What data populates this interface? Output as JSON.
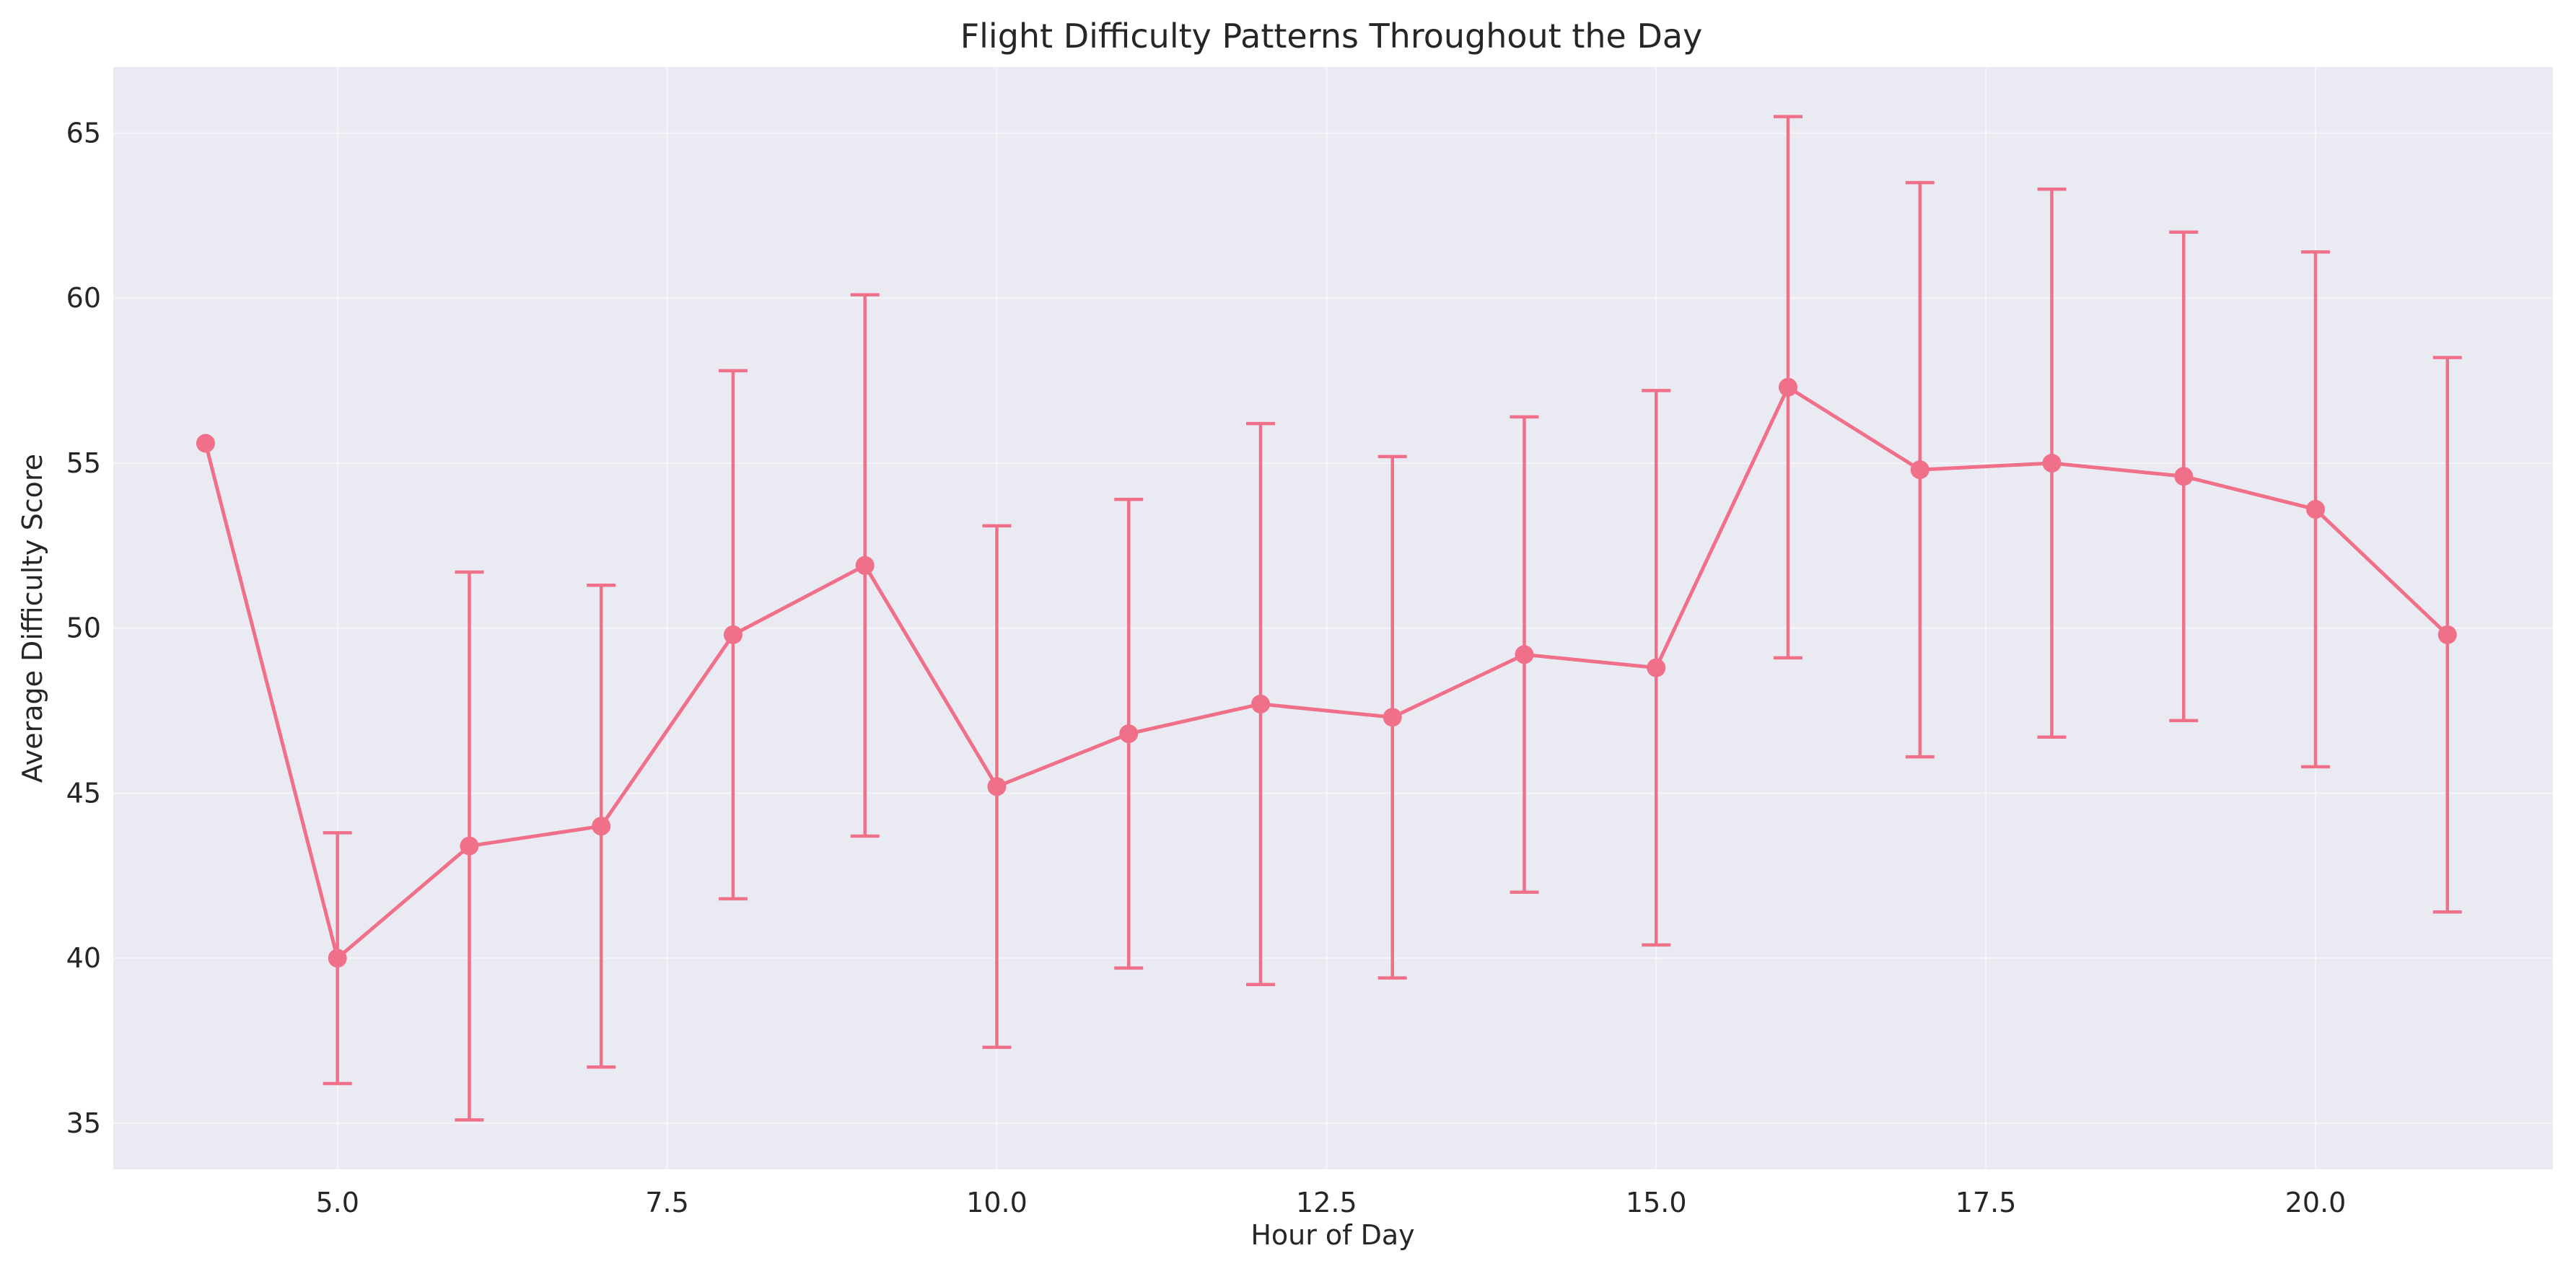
{
  "chart_data": {
    "type": "line",
    "title": "Flight Difficulty Patterns Throughout the Day",
    "xlabel": "Hour of Day",
    "ylabel": "Average Difficulty Score",
    "xlim": [
      3.3,
      21.8
    ],
    "ylim": [
      33.6,
      67.0
    ],
    "xticks": [
      5.0,
      7.5,
      10.0,
      12.5,
      15.0,
      17.5,
      20.0
    ],
    "xtick_labels": [
      "5.0",
      "7.5",
      "10.0",
      "12.5",
      "15.0",
      "17.5",
      "20.0"
    ],
    "yticks": [
      35,
      40,
      45,
      50,
      55,
      60,
      65
    ],
    "ytick_labels": [
      "35",
      "40",
      "45",
      "50",
      "55",
      "60",
      "65"
    ],
    "grid": true,
    "legend": "none",
    "colors": {
      "series": "#f0708a",
      "plot_bg": "#eaeaf2",
      "grid": "#ffffff"
    },
    "series": [
      {
        "x": [
          4,
          5,
          6,
          7,
          8,
          9,
          10,
          11,
          12,
          13,
          14,
          15,
          16,
          17,
          18,
          19,
          20,
          21
        ],
        "values": [
          55.6,
          40.0,
          43.4,
          44.0,
          49.8,
          51.9,
          45.2,
          46.8,
          47.7,
          47.3,
          49.2,
          48.8,
          57.3,
          54.8,
          55.0,
          54.6,
          53.6,
          49.8
        ],
        "error": [
          null,
          3.8,
          8.3,
          7.3,
          8.0,
          8.2,
          7.9,
          7.1,
          8.5,
          7.9,
          7.2,
          8.4,
          8.2,
          8.7,
          8.3,
          7.4,
          7.8,
          8.4
        ]
      }
    ]
  }
}
